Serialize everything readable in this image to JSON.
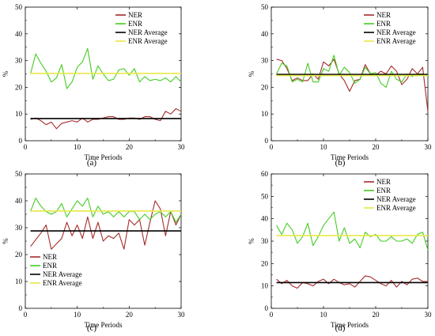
{
  "chart_data": [
    {
      "panel_label": "(a)",
      "type": "line",
      "xlabel": "Time Periods",
      "ylabel": "%",
      "xlim": [
        0,
        30
      ],
      "ylim": [
        0,
        50
      ],
      "xticks": [
        0,
        10,
        20,
        30
      ],
      "yticks": [
        0,
        10,
        20,
        30,
        40,
        50
      ],
      "legend_position": "top-right",
      "x": [
        1,
        2,
        3,
        4,
        5,
        6,
        7,
        8,
        9,
        10,
        11,
        12,
        13,
        14,
        15,
        16,
        17,
        18,
        19,
        20,
        21,
        22,
        23,
        24,
        25,
        26,
        27,
        28,
        29,
        30
      ],
      "series": [
        {
          "name": "NER",
          "color": "#a52a2a",
          "values": [
            8,
            8.5,
            7.5,
            6,
            7,
            4.5,
            6.5,
            7,
            7.5,
            7,
            8.5,
            7,
            8,
            8,
            8.5,
            9,
            9,
            8,
            8,
            8.5,
            8.5,
            8,
            9,
            9,
            8,
            7.5,
            11,
            10,
            12,
            11
          ]
        },
        {
          "name": "ENR",
          "color": "#44cc22",
          "values": [
            25,
            32.5,
            29,
            26,
            22,
            23.5,
            28.5,
            19.5,
            22,
            27.5,
            29.5,
            34.5,
            23,
            28,
            25,
            22.5,
            23,
            26.5,
            27,
            24.5,
            27,
            22,
            24,
            22.5,
            23,
            22.5,
            23.5,
            22,
            24,
            22
          ]
        },
        {
          "name": "NER Average",
          "color": "#000000",
          "values": [
            8.3,
            8.3,
            8.3,
            8.3,
            8.3,
            8.3,
            8.3,
            8.3,
            8.3,
            8.3,
            8.3,
            8.3,
            8.3,
            8.3,
            8.3,
            8.3,
            8.3,
            8.3,
            8.3,
            8.3,
            8.3,
            8.3,
            8.3,
            8.3,
            8.3,
            8.3,
            8.3,
            8.3,
            8.3,
            8.3
          ]
        },
        {
          "name": "ENR Average",
          "color": "#e8e84a",
          "values": [
            25.2,
            25.2,
            25.2,
            25.2,
            25.2,
            25.2,
            25.2,
            25.2,
            25.2,
            25.2,
            25.2,
            25.2,
            25.2,
            25.2,
            25.2,
            25.2,
            25.2,
            25.2,
            25.2,
            25.2,
            25.2,
            25.2,
            25.2,
            25.2,
            25.2,
            25.2,
            25.2,
            25.2,
            25.2,
            25.2
          ]
        }
      ]
    },
    {
      "panel_label": "(b)",
      "type": "line",
      "xlabel": "Time Periods",
      "ylabel": "%",
      "xlim": [
        0,
        30
      ],
      "ylim": [
        0,
        50
      ],
      "xticks": [
        0,
        10,
        20,
        30
      ],
      "yticks": [
        0,
        10,
        20,
        30,
        40,
        50
      ],
      "legend_position": "top-right",
      "x": [
        1,
        2,
        3,
        4,
        5,
        6,
        7,
        8,
        9,
        10,
        11,
        12,
        13,
        14,
        15,
        16,
        17,
        18,
        19,
        20,
        21,
        22,
        23,
        24,
        25,
        26,
        27,
        28,
        29,
        30
      ],
      "series": [
        {
          "name": "NER",
          "color": "#a52a2a",
          "values": [
            30.5,
            30,
            27,
            22.5,
            23.5,
            22.5,
            22.5,
            25,
            23,
            29.5,
            28,
            30.5,
            25,
            22.5,
            18.5,
            22.5,
            23,
            28.5,
            25,
            24.5,
            26,
            25,
            28,
            26,
            21,
            23,
            27,
            25,
            27.5,
            11
          ]
        },
        {
          "name": "ENR",
          "color": "#44cc22",
          "values": [
            25,
            29,
            28,
            22,
            23,
            22,
            29,
            22,
            22,
            27,
            26,
            32,
            24.5,
            27.5,
            25.5,
            21.5,
            23,
            27.5,
            25,
            25.5,
            21.5,
            20,
            26,
            23,
            22,
            25,
            24,
            25,
            25,
            24
          ]
        },
        {
          "name": "NER Average",
          "color": "#000000",
          "values": [
            24.8,
            24.8,
            24.8,
            24.8,
            24.8,
            24.8,
            24.8,
            24.8,
            24.8,
            24.8,
            24.8,
            24.8,
            24.8,
            24.8,
            24.8,
            24.8,
            24.8,
            24.8,
            24.8,
            24.8,
            24.8,
            24.8,
            24.8,
            24.8,
            24.8,
            24.8,
            24.8,
            24.8,
            24.8,
            24.8
          ]
        },
        {
          "name": "ENR Average",
          "color": "#e8e84a",
          "values": [
            24.4,
            24.4,
            24.4,
            24.4,
            24.4,
            24.4,
            24.4,
            24.4,
            24.4,
            24.4,
            24.4,
            24.4,
            24.4,
            24.4,
            24.4,
            24.4,
            24.4,
            24.4,
            24.4,
            24.4,
            24.4,
            24.4,
            24.4,
            24.4,
            24.4,
            24.4,
            24.4,
            24.4,
            24.4,
            24.4
          ]
        }
      ]
    },
    {
      "panel_label": "(c)",
      "type": "line",
      "xlabel": "Time Periods",
      "ylabel": "%",
      "xlim": [
        0,
        30
      ],
      "ylim": [
        0,
        50
      ],
      "xticks": [
        0,
        10,
        20,
        30
      ],
      "yticks": [
        0,
        10,
        20,
        30,
        40,
        50
      ],
      "legend_position": "bottom-left",
      "x": [
        1,
        2,
        3,
        4,
        5,
        6,
        7,
        8,
        9,
        10,
        11,
        12,
        13,
        14,
        15,
        16,
        17,
        18,
        19,
        20,
        21,
        22,
        23,
        24,
        25,
        26,
        27,
        28,
        29,
        30
      ],
      "series": [
        {
          "name": "NER",
          "color": "#a52a2a",
          "values": [
            23,
            25.5,
            28,
            31,
            22,
            24,
            26,
            32,
            27,
            31,
            26,
            34,
            26,
            32,
            25,
            27,
            26,
            28,
            22,
            33,
            31,
            33,
            23.5,
            32,
            40,
            37,
            27,
            36,
            31,
            35
          ]
        },
        {
          "name": "ENR",
          "color": "#44cc22",
          "values": [
            36,
            41,
            38,
            36,
            35,
            36,
            39,
            34,
            37,
            40,
            38,
            41,
            34,
            38,
            35,
            36,
            34,
            36,
            34,
            36,
            36,
            33,
            35,
            33,
            35,
            36,
            34,
            36,
            32,
            35
          ]
        },
        {
          "name": "NER Average",
          "color": "#000000",
          "values": [
            28.8,
            28.8,
            28.8,
            28.8,
            28.8,
            28.8,
            28.8,
            28.8,
            28.8,
            28.8,
            28.8,
            28.8,
            28.8,
            28.8,
            28.8,
            28.8,
            28.8,
            28.8,
            28.8,
            28.8,
            28.8,
            28.8,
            28.8,
            28.8,
            28.8,
            28.8,
            28.8,
            28.8,
            28.8,
            28.8
          ]
        },
        {
          "name": "ENR Average",
          "color": "#e8e84a",
          "values": [
            36.2,
            36.2,
            36.2,
            36.2,
            36.2,
            36.2,
            36.2,
            36.2,
            36.2,
            36.2,
            36.2,
            36.2,
            36.2,
            36.2,
            36.2,
            36.2,
            36.2,
            36.2,
            36.2,
            36.2,
            36.2,
            36.2,
            36.2,
            36.2,
            36.2,
            36.2,
            36.2,
            36.2,
            36.2,
            36.2
          ]
        }
      ]
    },
    {
      "panel_label": "(d)",
      "type": "line",
      "xlabel": "Time Periods",
      "ylabel": "%",
      "xlim": [
        0,
        30
      ],
      "ylim": [
        0,
        60
      ],
      "xticks": [
        0,
        10,
        20,
        30
      ],
      "yticks": [
        0,
        10,
        20,
        30,
        40,
        50,
        60
      ],
      "legend_position": "top-right",
      "x": [
        1,
        2,
        3,
        4,
        5,
        6,
        7,
        8,
        9,
        10,
        11,
        12,
        13,
        14,
        15,
        16,
        17,
        18,
        19,
        20,
        21,
        22,
        23,
        24,
        25,
        26,
        27,
        28,
        29,
        30
      ],
      "series": [
        {
          "name": "NER",
          "color": "#a52a2a",
          "values": [
            13,
            11,
            12.5,
            10,
            9,
            11.5,
            11,
            10,
            12,
            13,
            11,
            13,
            11.5,
            10.5,
            11,
            9.5,
            12,
            14.5,
            14,
            12.5,
            11,
            10,
            12.5,
            9.5,
            12,
            10.5,
            13,
            13.5,
            12,
            12
          ]
        },
        {
          "name": "ENR",
          "color": "#44cc22",
          "values": [
            37,
            33,
            38,
            35,
            29,
            32,
            38,
            28,
            32,
            37,
            40,
            43,
            30,
            36,
            29,
            31,
            27,
            34,
            32,
            33,
            30,
            30,
            32,
            30,
            30,
            31,
            29,
            33,
            34,
            26
          ]
        },
        {
          "name": "NER Average",
          "color": "#000000",
          "values": [
            11.5,
            11.5,
            11.5,
            11.5,
            11.5,
            11.5,
            11.5,
            11.5,
            11.5,
            11.5,
            11.5,
            11.5,
            11.5,
            11.5,
            11.5,
            11.5,
            11.5,
            11.5,
            11.5,
            11.5,
            11.5,
            11.5,
            11.5,
            11.5,
            11.5,
            11.5,
            11.5,
            11.5,
            11.5,
            11.5
          ]
        },
        {
          "name": "ENR Average",
          "color": "#e8e84a",
          "values": [
            32.5,
            32.5,
            32.5,
            32.5,
            32.5,
            32.5,
            32.5,
            32.5,
            32.5,
            32.5,
            32.5,
            32.5,
            32.5,
            32.5,
            32.5,
            32.5,
            32.5,
            32.5,
            32.5,
            32.5,
            32.5,
            32.5,
            32.5,
            32.5,
            32.5,
            32.5,
            32.5,
            32.5,
            32.5,
            32.5
          ]
        }
      ]
    }
  ]
}
